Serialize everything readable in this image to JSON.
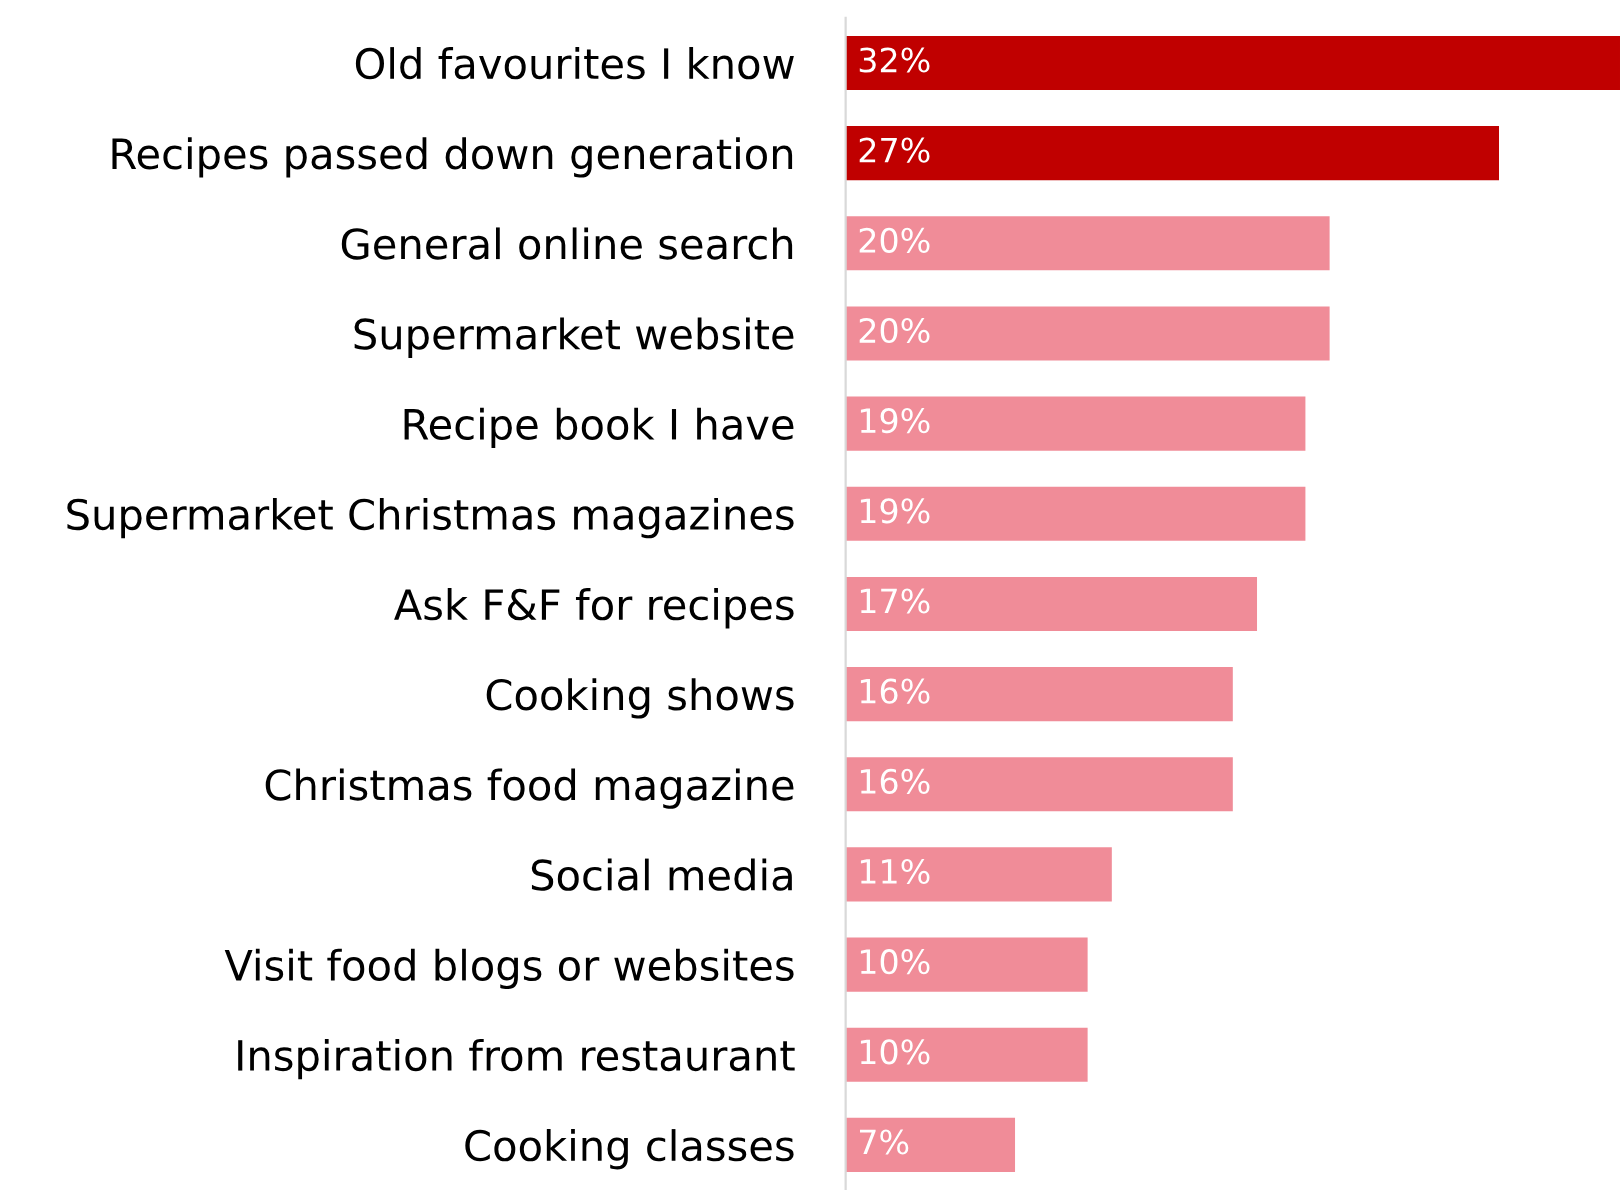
{
  "chart_data": {
    "type": "bar",
    "orientation": "horizontal",
    "categories": [
      "Old favourites I know",
      "Recipes passed down generation",
      "General online search",
      "Supermarket website",
      "Recipe book I have",
      "Supermarket Christmas magazines",
      "Ask F&F for recipes",
      "Cooking shows",
      "Christmas food magazine",
      "Social media",
      "Visit food blogs or websites",
      "Inspiration from restaurant",
      "Cooking classes"
    ],
    "values": [
      32,
      27,
      20,
      20,
      19,
      19,
      17,
      16,
      16,
      11,
      10,
      10,
      7
    ],
    "value_labels": [
      "32%",
      "27%",
      "20%",
      "20%",
      "19%",
      "19%",
      "17%",
      "16%",
      "16%",
      "11%",
      "10%",
      "10%",
      "7%"
    ],
    "colors": [
      "#c00000",
      "#c00000",
      "#f08c98",
      "#f08c98",
      "#f08c98",
      "#f08c98",
      "#f08c98",
      "#f08c98",
      "#f08c98",
      "#f08c98",
      "#f08c98",
      "#f08c98",
      "#f08c98"
    ],
    "grid": false,
    "legend": false
  }
}
